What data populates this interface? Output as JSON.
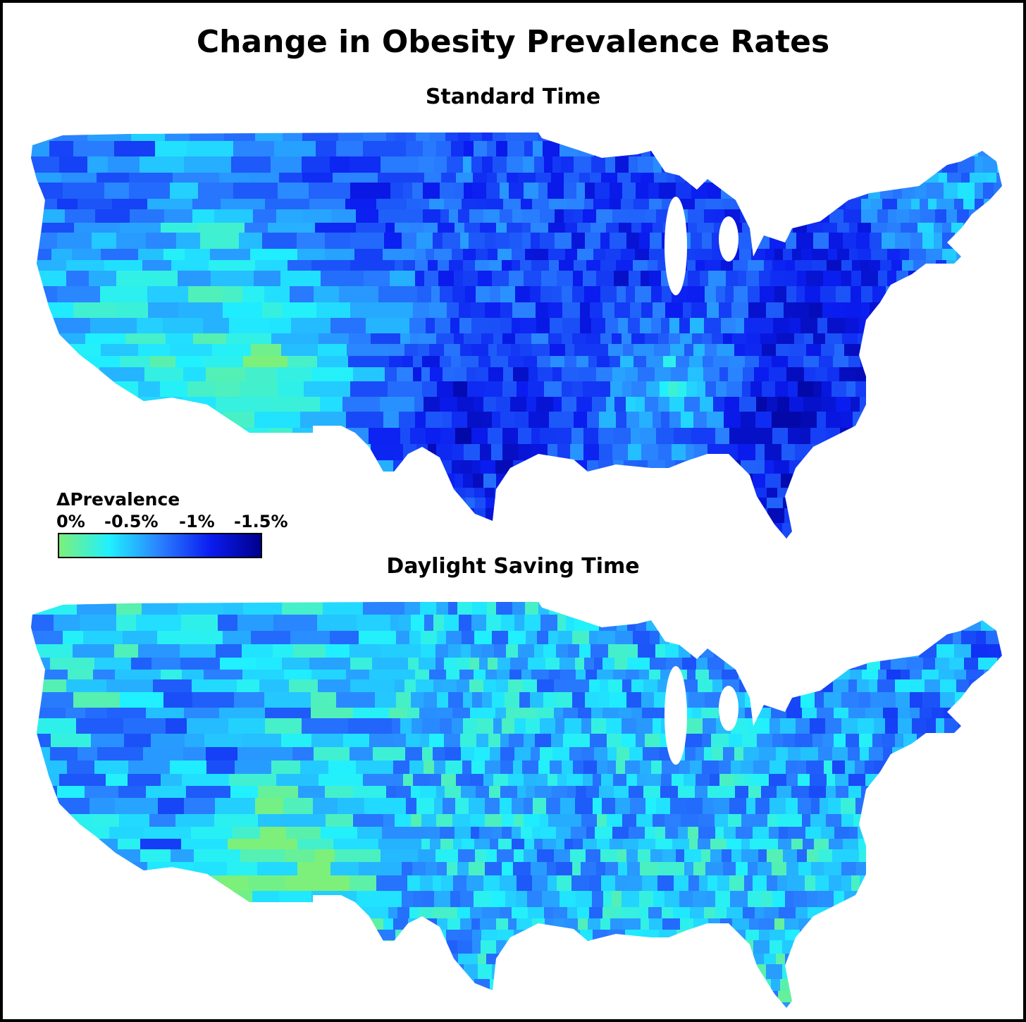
{
  "title": "Change in Obesity Prevalence Rates",
  "panels": {
    "standard": {
      "subtitle": "Standard Time"
    },
    "daylight": {
      "subtitle": "Daylight Saving Time"
    }
  },
  "legend": {
    "title": "ΔPrevalence",
    "ticks": [
      "0%",
      "-0.5%",
      "-1%",
      "-1.5%"
    ],
    "tick_values": [
      0,
      -0.5,
      -1,
      -1.5
    ],
    "range": [
      0,
      -1.6
    ],
    "colors": [
      "#7cf07a",
      "#20f0ff",
      "#2a80ff",
      "#0a1cf0",
      "#00008c"
    ]
  },
  "chart_data": {
    "type": "choropleth",
    "title": "Change in Obesity Prevalence Rates",
    "region": "Contiguous United States (counties)",
    "variable": "ΔPrevalence",
    "value_range": [
      0,
      -1.6
    ],
    "maps": [
      {
        "name": "Standard Time",
        "typical_value": -1.1,
        "regional_values": [
          {
            "region": "Arizona",
            "value": -0.15
          },
          {
            "region": "Southern Nevada / California desert",
            "value": -0.3
          },
          {
            "region": "Utah / Nevada interior",
            "value": -0.45
          },
          {
            "region": "Pacific Northwest",
            "value": -0.9
          },
          {
            "region": "Northern Plains",
            "value": -1.0
          },
          {
            "region": "Texas / Oklahoma",
            "value": -1.25
          },
          {
            "region": "Tennessee / Kentucky / Alabama",
            "value": -0.5
          },
          {
            "region": "Southeast (Georgia / Carolinas)",
            "value": -1.3
          },
          {
            "region": "Florida",
            "value": -1.2
          },
          {
            "region": "Midwest",
            "value": -1.1
          },
          {
            "region": "Mid-Atlantic",
            "value": -1.15
          },
          {
            "region": "New England",
            "value": -0.7
          }
        ]
      },
      {
        "name": "Daylight Saving Time",
        "typical_value": -0.6,
        "regional_values": [
          {
            "region": "Arizona",
            "value": -0.05
          },
          {
            "region": "Southern Nevada / California desert",
            "value": -0.8
          },
          {
            "region": "Utah / Nevada interior",
            "value": -0.75
          },
          {
            "region": "Pacific Northwest",
            "value": -0.5
          },
          {
            "region": "Northern Plains",
            "value": -0.55
          },
          {
            "region": "Texas / Oklahoma",
            "value": -0.6
          },
          {
            "region": "Tennessee / Kentucky / Alabama",
            "value": -0.55
          },
          {
            "region": "Southeast (Georgia / Carolinas)",
            "value": -0.55
          },
          {
            "region": "Florida",
            "value": -0.45
          },
          {
            "region": "Midwest",
            "value": -0.6
          },
          {
            "region": "Mid-Atlantic",
            "value": -0.7
          },
          {
            "region": "New England",
            "value": -0.75
          }
        ]
      }
    ]
  }
}
